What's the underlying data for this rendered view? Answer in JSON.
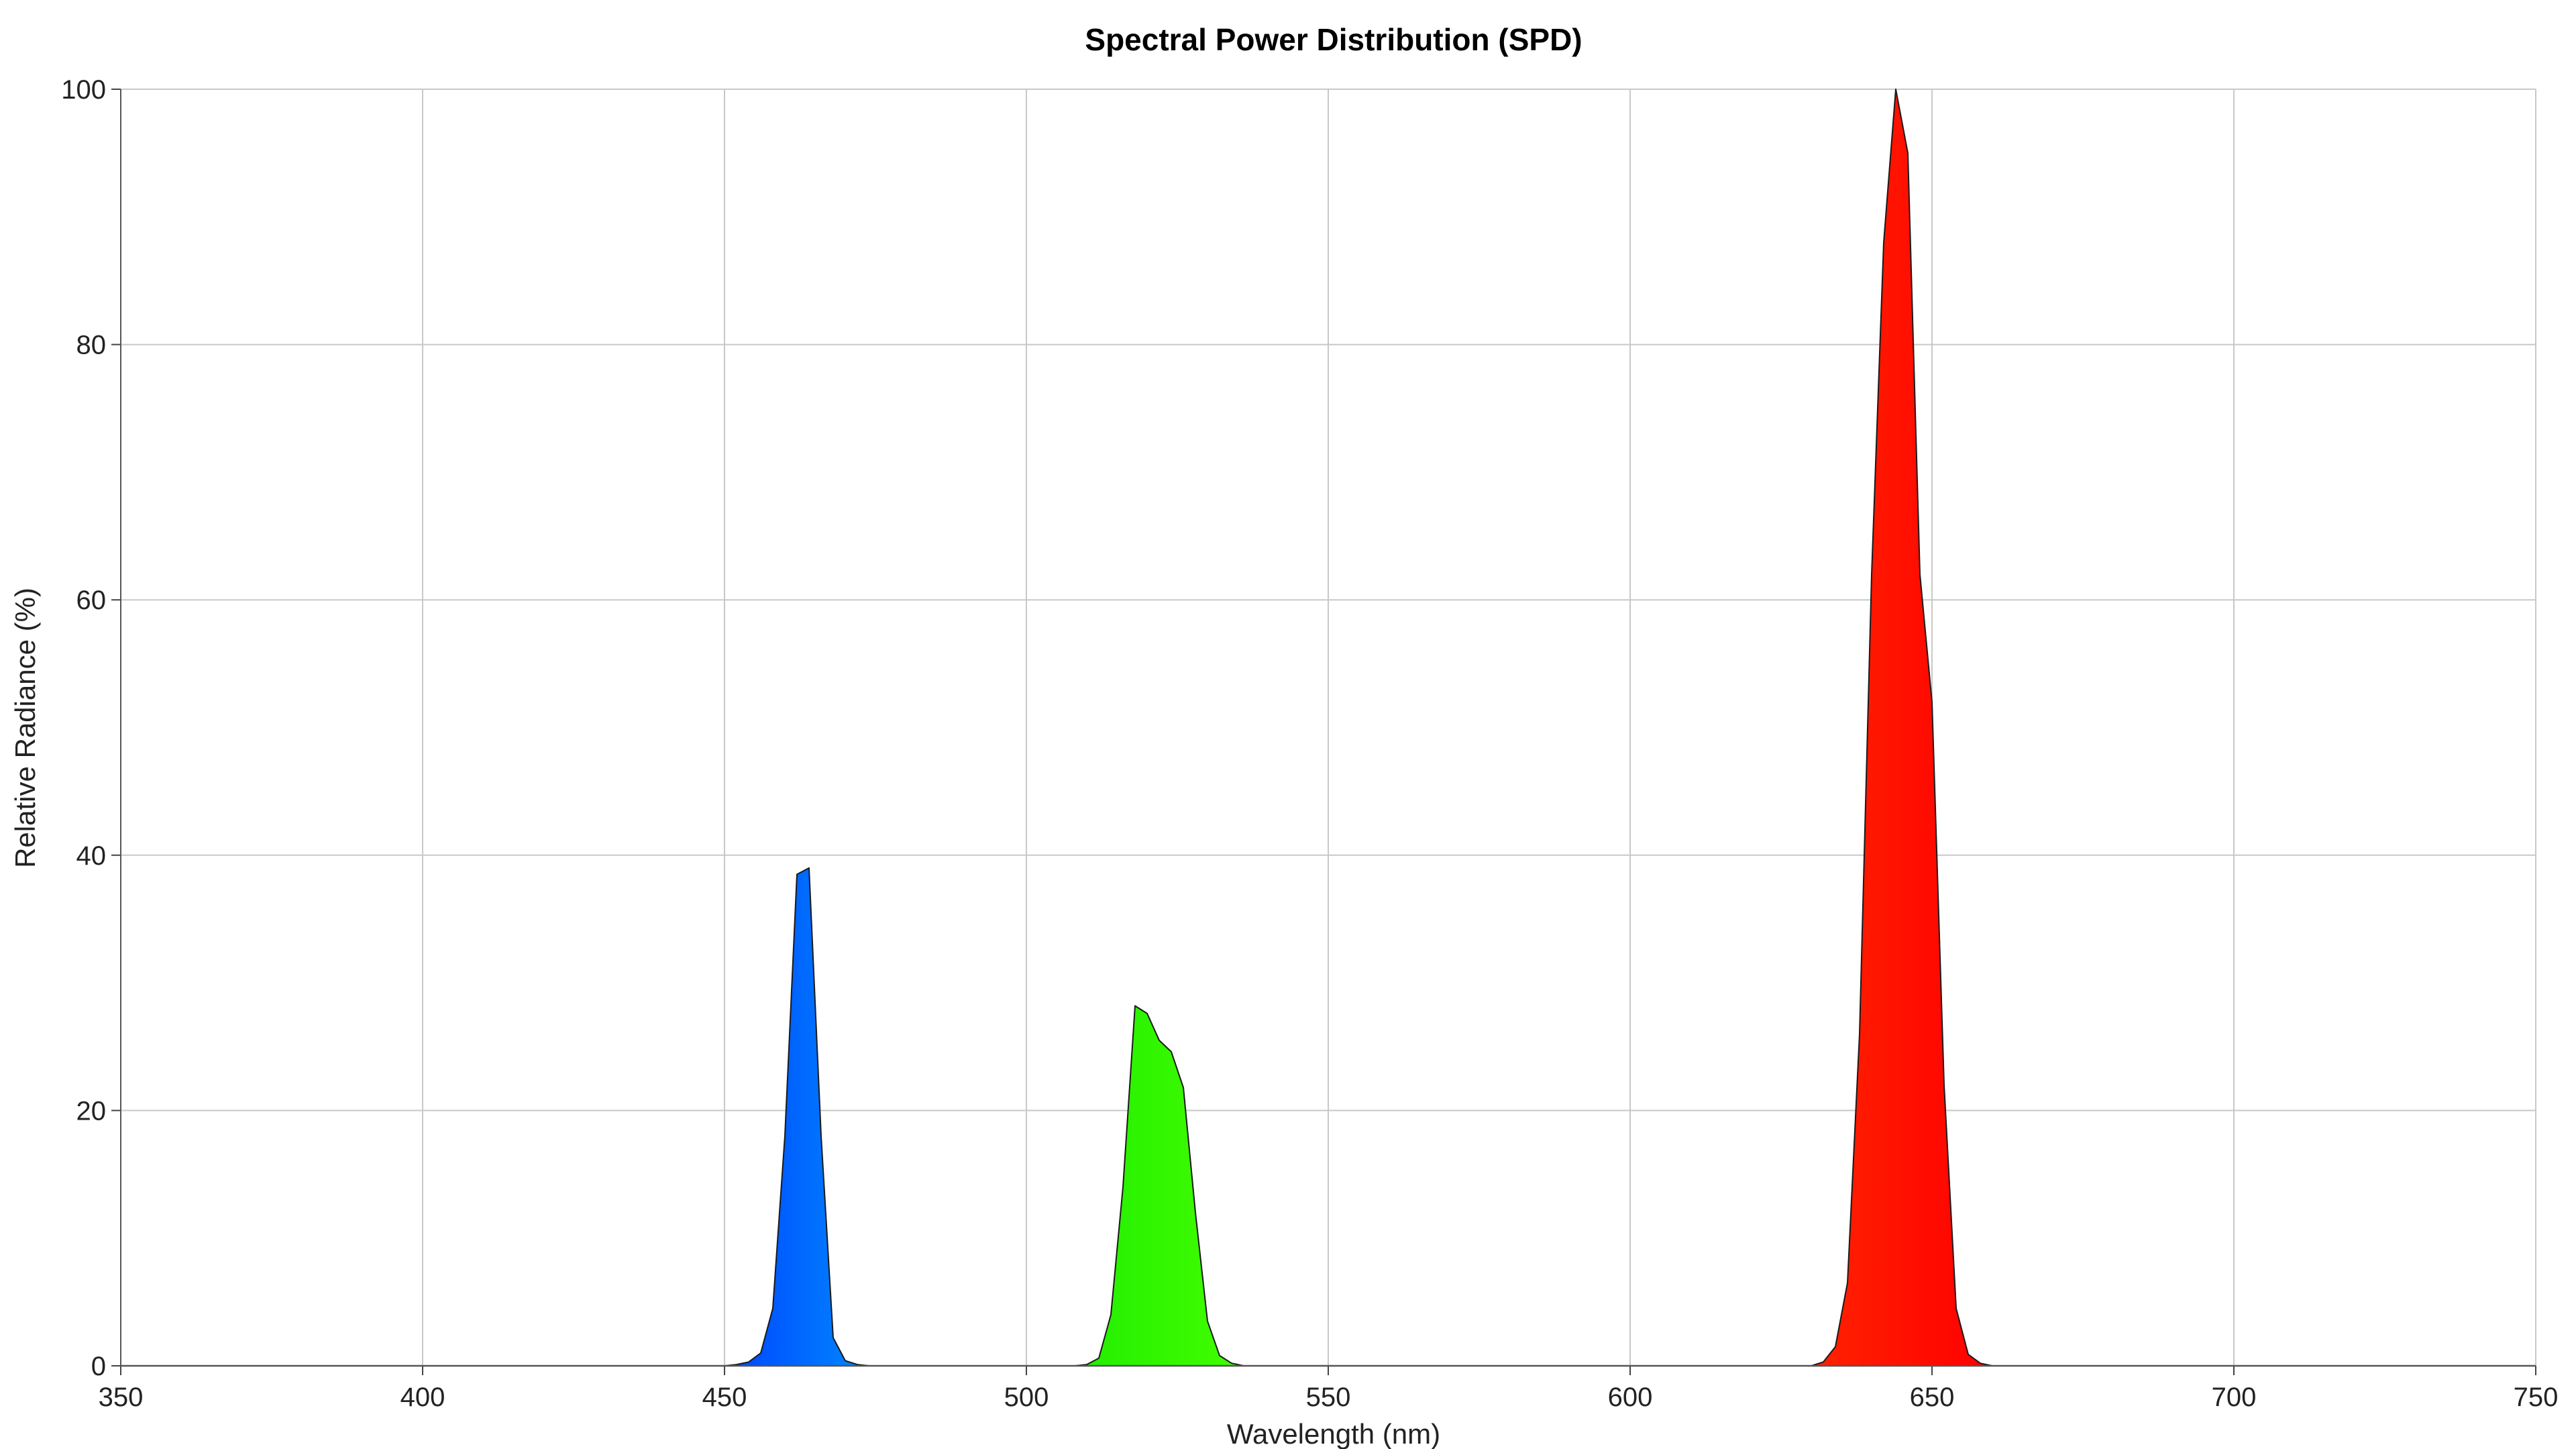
{
  "chart_data": {
    "type": "area",
    "title": "Spectral Power Distribution (SPD)",
    "xlabel": "Wavelength (nm)",
    "ylabel": "Relative Radiance (%)",
    "xlim": [
      350,
      750
    ],
    "ylim": [
      0,
      100
    ],
    "xticks": [
      350,
      400,
      450,
      500,
      550,
      600,
      650,
      700,
      750
    ],
    "yticks": [
      0,
      20,
      40,
      60,
      80,
      100
    ],
    "grid": true,
    "legend": "none",
    "series": [
      {
        "color": "#0066ff",
        "x": [
          450,
          452,
          454,
          456,
          458,
          460,
          462,
          464,
          466,
          468,
          470,
          472,
          474
        ],
        "y": [
          0,
          0.1,
          0.3,
          1,
          4.5,
          18,
          38.5,
          39,
          18,
          2.2,
          0.4,
          0.1,
          0
        ]
      },
      {
        "color": "#33ff00",
        "x": [
          508,
          510,
          512,
          514,
          516,
          518,
          520,
          522,
          524,
          526,
          528,
          530,
          532,
          534,
          536,
          538
        ],
        "y": [
          0,
          0.1,
          0.6,
          4,
          14,
          28.2,
          27.6,
          25.5,
          24.6,
          21.8,
          12,
          3.5,
          0.8,
          0.2,
          0,
          0
        ]
      },
      {
        "color": "#ff0000",
        "x": [
          630,
          632,
          634,
          636,
          638,
          640,
          642,
          644,
          646,
          648,
          650,
          652,
          654,
          656,
          658,
          660
        ],
        "y": [
          0,
          0.3,
          1.5,
          6.5,
          26,
          62,
          88,
          100,
          95,
          62,
          52,
          22,
          4.5,
          0.9,
          0.2,
          0
        ]
      }
    ]
  }
}
